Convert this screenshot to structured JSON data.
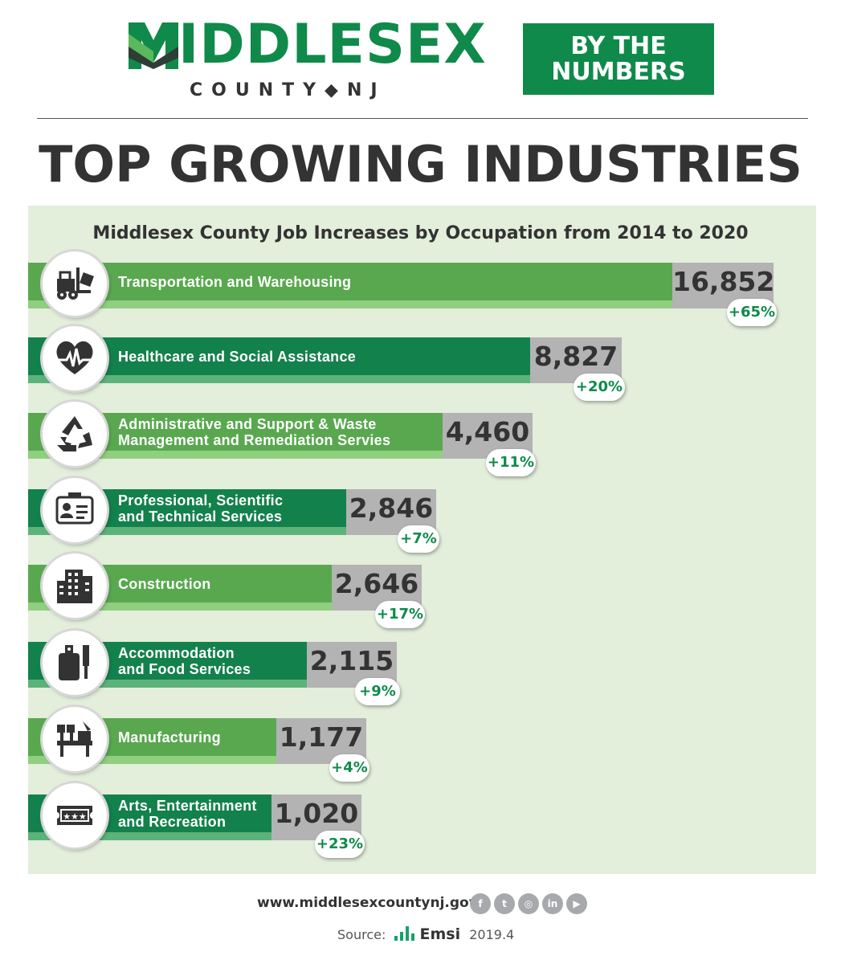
{
  "header": {
    "logo_main": "MIDDLESEX",
    "logo_sub": "COUNTY◆NJ",
    "badge_line1": "BY THE",
    "badge_line2": "NUMBERS",
    "title": "TOP GROWING INDUSTRIES"
  },
  "colors": {
    "brand_green": "#0f8a4a",
    "bar_light": "#59a84f",
    "bar_dark": "#13814c",
    "panel_bg": "#e3eedb",
    "value_gray": "#b3b3b3"
  },
  "chart_data": {
    "type": "bar",
    "title": "Middlesex County Job Increases by Occupation from 2014 to 2020",
    "categories": [
      "Transportation and Warehousing",
      "Healthcare and Social Assistance",
      "Administrative and Support & Waste Management and Remediation Servies",
      "Professional, Scientific and Technical Services",
      "Construction",
      "Accommodation and Food Services",
      "Manufacturing",
      "Arts, Entertainment and Recreation"
    ],
    "values": [
      16852,
      8827,
      4460,
      2846,
      2646,
      2115,
      1177,
      1020
    ],
    "value_labels": [
      "16,852",
      "8,827",
      "4,460",
      "2,846",
      "2,646",
      "2,115",
      "1,177",
      "1,020"
    ],
    "percent_labels": [
      "+65%",
      "+20%",
      "+11%",
      "+7%",
      "+17%",
      "+9%",
      "+4%",
      "+23%"
    ],
    "label_lines": [
      [
        "Transportation and Warehousing"
      ],
      [
        "Healthcare and Social Assistance"
      ],
      [
        "Administrative and Support & Waste",
        "Management and Remediation Servies"
      ],
      [
        "Professional, Scientific",
        "and Technical Services"
      ],
      [
        "Construction"
      ],
      [
        "Accommodation",
        "and Food Services"
      ],
      [
        "Manufacturing"
      ],
      [
        "Arts, Entertainment",
        "and Recreation"
      ]
    ],
    "icons": [
      "forklift-icon",
      "heart-pulse-icon",
      "recycle-icon",
      "id-card-icon",
      "building-icon",
      "cutting-board-icon",
      "factory-machine-icon",
      "ticket-icon"
    ],
    "bar_styles": [
      "light",
      "dark",
      "light",
      "dark",
      "light",
      "dark",
      "light",
      "dark"
    ]
  },
  "footer": {
    "url": "www.middlesexcountynj.gov",
    "social_icons": [
      "facebook-icon",
      "twitter-icon",
      "instagram-icon",
      "linkedin-icon",
      "youtube-icon"
    ],
    "source_label": "Source:",
    "source_name": "Emsi",
    "source_version": "2019.4"
  }
}
